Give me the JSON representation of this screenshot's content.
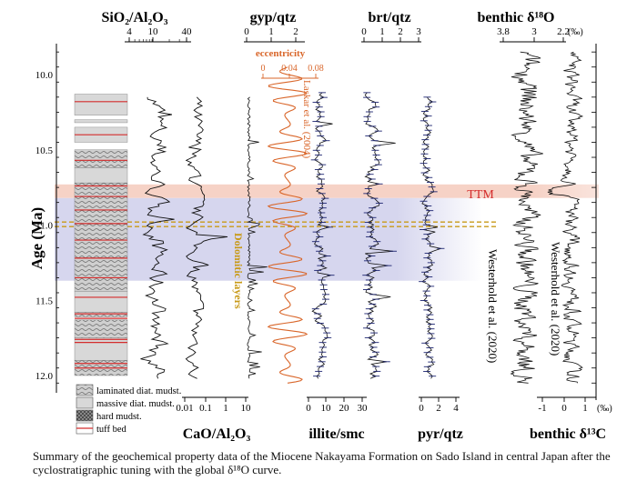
{
  "caption": "Summary of the geochemical property data of the Miocene Nakayama Formation on Sado Island in central Japan after the cyclostratigraphic tuning with the global δ¹⁸O curve.",
  "chart_data": {
    "type": "line",
    "y_axis": {
      "label": "Age (Ma)",
      "range": [
        9.8,
        12.1
      ],
      "ticks": [
        "10.0",
        "10.5",
        "11.0",
        "11.5",
        "12.0"
      ],
      "reversed": true
    },
    "headers": {
      "sio2": "SiO₂/Al₂O₃",
      "gyp": "gyp/qtz",
      "brt": "brt/qtz",
      "benthic_o": "benthic δ¹⁸O",
      "cao": "CaO/Al₂O₃",
      "illite": "illite/smc",
      "pyr": "pyr/qtz",
      "benthic_c": "benthic δ¹³C",
      "eccentricity": "eccentricity"
    },
    "tick_labels": {
      "sio2": [
        "4",
        "10",
        "40"
      ],
      "gyp": [
        "0",
        "1",
        "2"
      ],
      "brt": [
        "0",
        "1",
        "2",
        "3"
      ],
      "benthic_o": [
        "3.8",
        "3",
        "2.2"
      ],
      "benthic_o_unit": "(‰)",
      "eccentricity": [
        "0",
        "0.04",
        "0.08"
      ],
      "cao": [
        "0.01",
        "0.1",
        "1",
        "10"
      ],
      "illite": [
        "0",
        "10",
        "20",
        "30"
      ],
      "pyr": [
        "0",
        "2",
        "4"
      ],
      "benthic_c": [
        "-1",
        "0",
        "1"
      ],
      "benthic_c_unit": "(‰)"
    },
    "annotations": {
      "laskar": "Laskar et al. (2004)",
      "ttm": "TTM",
      "dolomitic": "Dolomitic layers",
      "westerhold_o": "Westerhold et al. (2020)",
      "westerhold_c": "Westerhold et al. (2020)"
    },
    "bands": {
      "ttm": [
        10.73,
        10.82
      ],
      "blue": [
        10.82,
        11.37
      ],
      "dolomitic_lines": [
        10.98,
        11.01
      ]
    },
    "legend": [
      {
        "label": "laminated diat. mudst.",
        "pattern": "laminated"
      },
      {
        "label": "massive diat. mudst.",
        "pattern": "massive"
      },
      {
        "label": "hard mudst.",
        "pattern": "hard"
      },
      {
        "label": "tuff bed",
        "pattern": "tuff"
      }
    ],
    "lithology": [
      {
        "top": 10.13,
        "bottom": 10.27,
        "kind": "massive"
      },
      {
        "top": 10.3,
        "bottom": 10.32,
        "kind": "massive"
      },
      {
        "top": 10.35,
        "bottom": 10.45,
        "kind": "massive"
      },
      {
        "top": 10.5,
        "bottom": 10.62,
        "kind": "laminated"
      },
      {
        "top": 10.62,
        "bottom": 10.72,
        "kind": "massive"
      },
      {
        "top": 10.72,
        "bottom": 11.44,
        "kind": "laminated"
      },
      {
        "top": 11.44,
        "bottom": 11.58,
        "kind": "massive"
      },
      {
        "top": 11.58,
        "bottom": 11.61,
        "kind": "laminated"
      },
      {
        "top": 11.63,
        "bottom": 11.75,
        "kind": "laminated"
      },
      {
        "top": 11.75,
        "bottom": 11.9,
        "kind": "massive"
      },
      {
        "top": 11.9,
        "bottom": 12.0,
        "kind": "laminated"
      }
    ],
    "tuff_beds": [
      10.18,
      10.4,
      10.57,
      10.74,
      10.81,
      10.9,
      10.99,
      11.1,
      11.22,
      11.35,
      11.48,
      11.59,
      11.62,
      11.76,
      11.78,
      11.92,
      11.95
    ],
    "colors": {
      "ttm_band": "#f6d2c6",
      "blue_band": "#d6d6ee",
      "eccentricity": "#d9662a",
      "ttm_text": "#d42c2c",
      "dolomitic": "#c89a18",
      "error_bars": "#1c2470"
    }
  }
}
